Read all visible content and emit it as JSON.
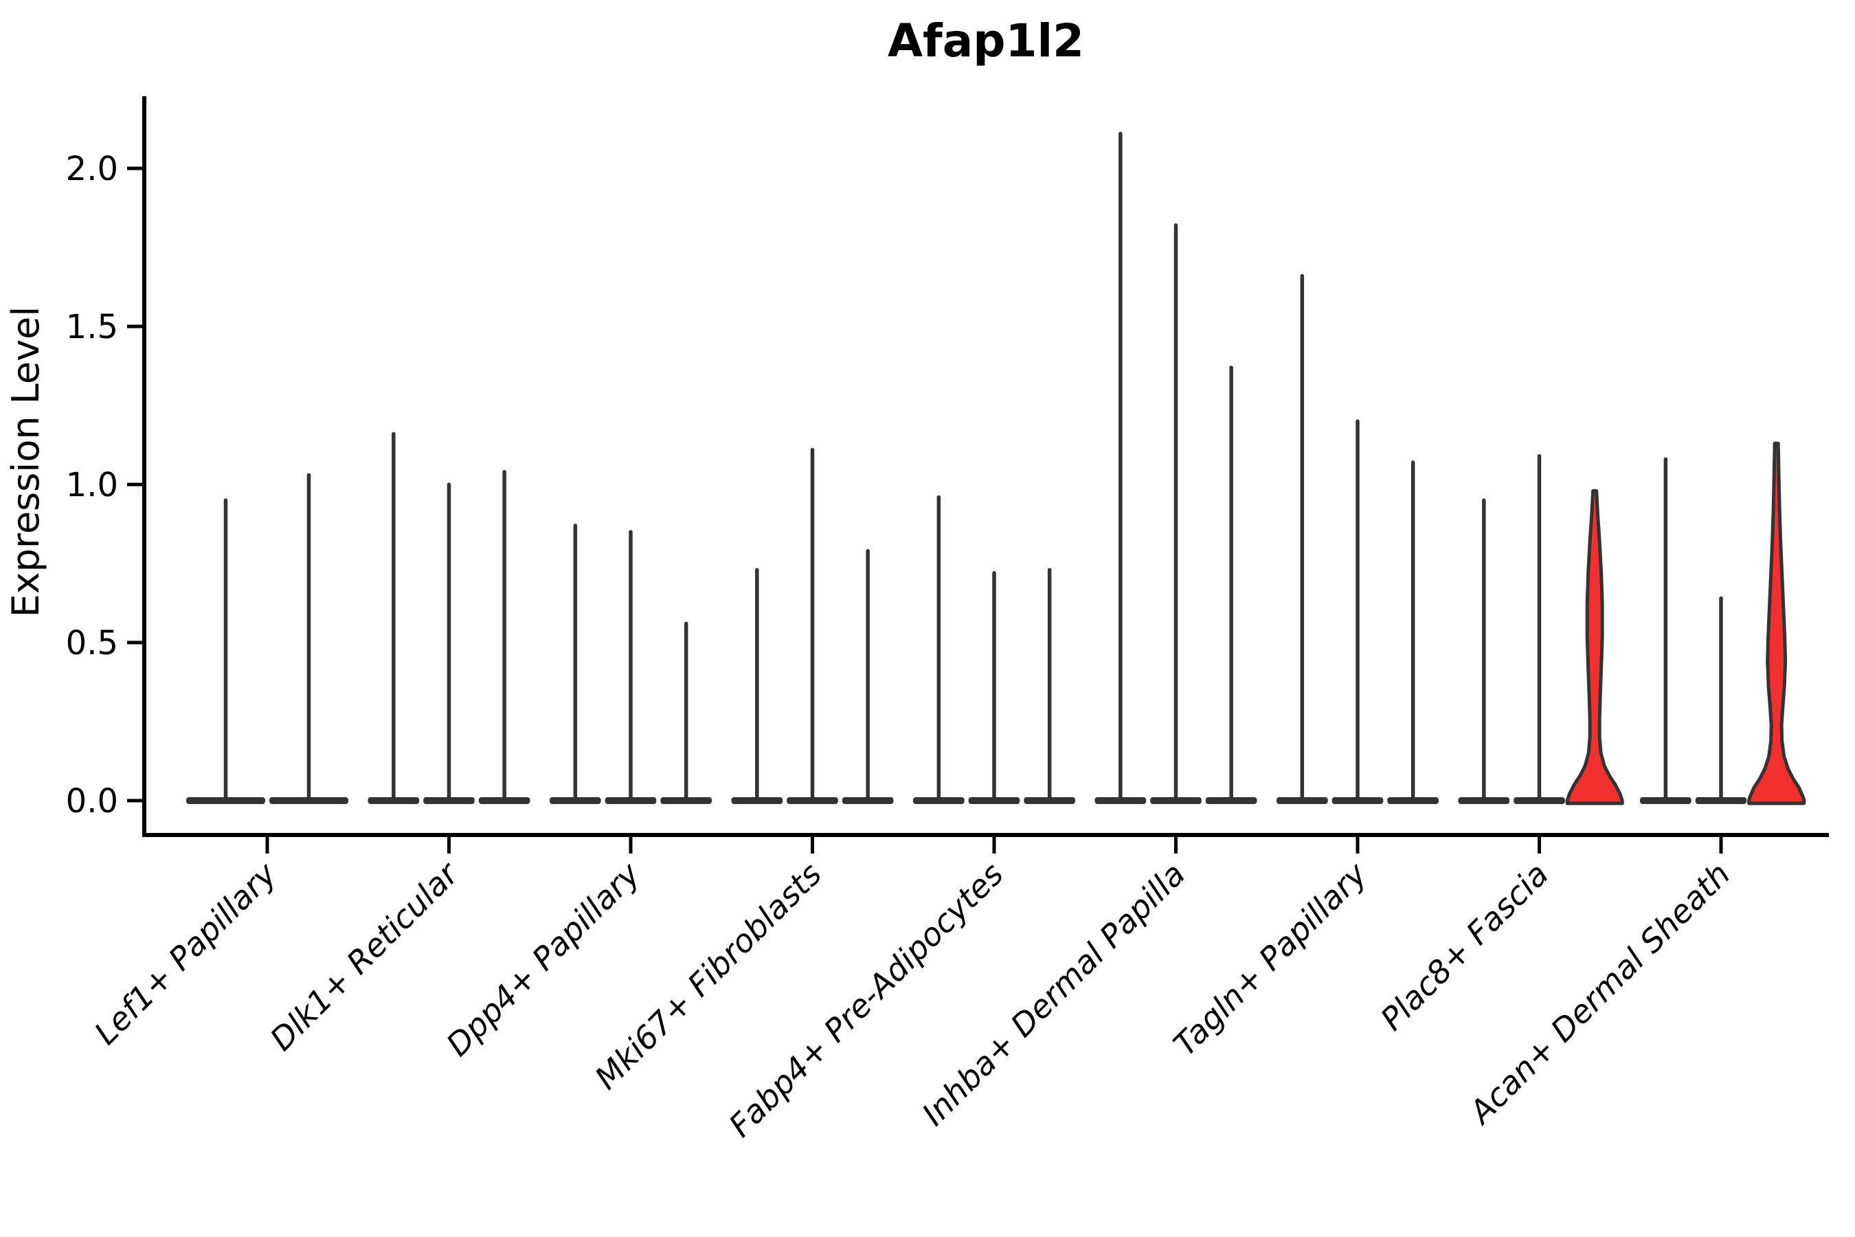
{
  "title": "Afap1l2",
  "y_axis": {
    "label": "Expression Level",
    "tick_labels": [
      "0.0",
      "0.5",
      "1.0",
      "1.5",
      "2.0"
    ],
    "tick_values": [
      0.0,
      0.5,
      1.0,
      1.5,
      2.0
    ]
  },
  "chart_data": {
    "type": "violin",
    "title": "Afap1l2",
    "ylabel": "Expression Level",
    "ylim": [
      -0.07,
      2.25
    ],
    "yticks": [
      0.0,
      0.5,
      1.0,
      1.5,
      2.0
    ],
    "grid": false,
    "legend": "none",
    "categories": [
      "Lef1+ Papillary",
      "Dlk1+ Reticular",
      "Dpp4+ Papillary",
      "Mki67+ Fibroblasts",
      "Fabp4+ Pre-Adipocytes",
      "Inhba+ Dermal Papilla",
      "Tagln+ Papillary",
      "Plac8+ Fascia",
      "Acan+ Dermal Sheath"
    ],
    "groups": [
      {
        "label": "Lef1+ Papillary",
        "violins": [
          {
            "max": 0.95
          },
          {
            "max": 1.03
          }
        ]
      },
      {
        "label": "Dlk1+ Reticular",
        "violins": [
          {
            "max": 1.16
          },
          {
            "max": 1.0
          },
          {
            "max": 1.04
          }
        ]
      },
      {
        "label": "Dpp4+ Papillary",
        "violins": [
          {
            "max": 0.87
          },
          {
            "max": 0.85
          },
          {
            "max": 0.56
          }
        ]
      },
      {
        "label": "Mki67+ Fibroblasts",
        "violins": [
          {
            "max": 0.73
          },
          {
            "max": 1.11
          },
          {
            "max": 0.79
          }
        ]
      },
      {
        "label": "Fabp4+ Pre-Adipocytes",
        "violins": [
          {
            "max": 0.96
          },
          {
            "max": 0.72
          },
          {
            "max": 0.73
          }
        ]
      },
      {
        "label": "Inhba+ Dermal Papilla",
        "violins": [
          {
            "max": 2.11
          },
          {
            "max": 1.82
          },
          {
            "max": 1.37
          }
        ]
      },
      {
        "label": "Tagln+ Papillary",
        "violins": [
          {
            "max": 1.66
          },
          {
            "max": 1.2
          },
          {
            "max": 1.07
          }
        ]
      },
      {
        "label": "Plac8+ Fascia",
        "violins": [
          {
            "max": 0.95
          },
          {
            "max": 1.09
          },
          {
            "max": 0.98,
            "filled": true,
            "profile": [
              [
                0.98,
                2.5
              ],
              [
                0.9,
                4.5
              ],
              [
                0.82,
                7
              ],
              [
                0.72,
                9.5
              ],
              [
                0.62,
                11
              ],
              [
                0.52,
                11
              ],
              [
                0.42,
                9.5
              ],
              [
                0.33,
                8
              ],
              [
                0.26,
                7
              ],
              [
                0.2,
                7
              ],
              [
                0.15,
                9
              ],
              [
                0.11,
                14
              ],
              [
                0.08,
                21
              ],
              [
                0.05,
                30
              ],
              [
                0.02,
                37
              ],
              [
                0.0,
                40
              ]
            ]
          }
        ]
      },
      {
        "label": "Acan+ Dermal Sheath",
        "violins": [
          {
            "max": 1.08
          },
          {
            "max": 0.64
          },
          {
            "max": 1.13,
            "filled": true,
            "profile": [
              [
                1.13,
                2.5
              ],
              [
                1.02,
                3.5
              ],
              [
                0.92,
                4.5
              ],
              [
                0.82,
                6
              ],
              [
                0.72,
                8
              ],
              [
                0.62,
                10
              ],
              [
                0.52,
                12
              ],
              [
                0.44,
                13
              ],
              [
                0.36,
                11.5
              ],
              [
                0.29,
                9
              ],
              [
                0.24,
                7.5
              ],
              [
                0.19,
                8
              ],
              [
                0.14,
                11
              ],
              [
                0.1,
                17
              ],
              [
                0.07,
                24
              ],
              [
                0.04,
                33
              ],
              [
                0.01,
                39
              ],
              [
                0.0,
                40
              ]
            ]
          }
        ]
      }
    ],
    "colors": {
      "violin_stroke": "#333333",
      "violin_fill_highlight": "#F23030",
      "axis": "#000000",
      "background": "#ffffff"
    }
  }
}
